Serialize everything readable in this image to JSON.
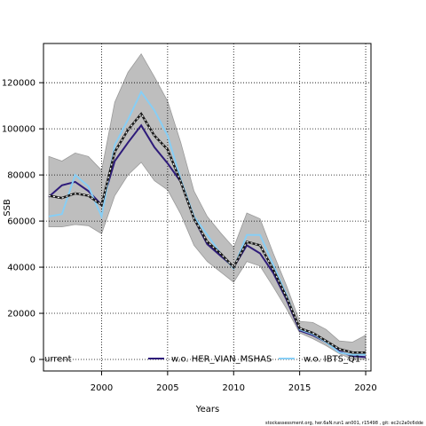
{
  "chart_data": {
    "type": "line",
    "xlabel": "Years",
    "ylabel": "SSB",
    "xlim": [
      1995.6,
      2020.4
    ],
    "ylim": [
      -5000,
      137000
    ],
    "x_ticks": [
      2000,
      2005,
      2010,
      2015,
      2020
    ],
    "y_ticks": [
      0,
      20000,
      40000,
      60000,
      80000,
      100000,
      120000
    ],
    "grid": true,
    "legend_position": "bottom",
    "footer": "stockassessment.org,  her.6aN.run1  an001, r15498 , git: ec2c2a0c6dde",
    "band": {
      "color": "#bebebe",
      "x": [
        1996,
        1997,
        1998,
        1999,
        2000,
        2001,
        2002,
        2003,
        2004,
        2005,
        2006,
        2007,
        2008,
        2009,
        2010,
        2011,
        2012,
        2013,
        2014,
        2015,
        2016,
        2017,
        2018,
        2019,
        2020
      ],
      "lower": [
        57500,
        57500,
        58500,
        58000,
        54500,
        71000,
        80000,
        85500,
        77500,
        73500,
        63000,
        49500,
        42500,
        38000,
        33500,
        42500,
        40500,
        31500,
        22000,
        11500,
        9000,
        6000,
        2500,
        0,
        0
      ],
      "upper": [
        88000,
        86000,
        89500,
        88000,
        82000,
        111500,
        124500,
        132500,
        122500,
        112000,
        94000,
        73000,
        62000,
        55000,
        48500,
        63500,
        61000,
        46000,
        32000,
        16500,
        16000,
        13000,
        8000,
        7500,
        10500
      ]
    },
    "series": [
      {
        "name": "",
        "color": "#1a1a1a",
        "dash": "dashed",
        "x": [
          1996,
          1997,
          1998,
          1999,
          2000,
          2001,
          2002,
          2003,
          2004,
          2005,
          2006,
          2007,
          2008,
          2009,
          2010,
          2011,
          2012,
          2013,
          2014,
          2015,
          2016,
          2017,
          2018,
          2019,
          2020
        ],
        "values": [
          71000,
          70000,
          72000,
          71000,
          67000,
          90000,
          99500,
          106500,
          97000,
          91000,
          77000,
          61000,
          51000,
          46000,
          40000,
          51000,
          49500,
          39000,
          27000,
          13500,
          11500,
          8000,
          4500,
          3000,
          3000
        ]
      },
      {
        "name": "urrent",
        "color": "#000000",
        "dash": "solid",
        "legend_only": true
      },
      {
        "name": "w.o. HER_VIAN_MSHAS",
        "color": "#2e1b7a",
        "dash": "solid",
        "x": [
          1996,
          1997,
          1998,
          1999,
          2000,
          2001,
          2002,
          2003,
          2004,
          2005,
          2006,
          2007,
          2008,
          2009,
          2010,
          2011,
          2012,
          2013,
          2014,
          2015,
          2016,
          2017,
          2018,
          2019,
          2020
        ],
        "values": [
          70500,
          75500,
          77000,
          73000,
          67000,
          86000,
          94000,
          101500,
          92000,
          85000,
          77000,
          61000,
          50000,
          45000,
          40000,
          49500,
          46000,
          37500,
          26000,
          12500,
          10500,
          7500,
          3500,
          1500,
          1000
        ]
      },
      {
        "name": "w.o. IBTS_Q1",
        "color": "#87cef5",
        "dash": "solid",
        "x": [
          1996,
          1997,
          1998,
          1999,
          2000,
          2001,
          2002,
          2003,
          2004,
          2005,
          2006,
          2007,
          2008,
          2009,
          2010,
          2011,
          2012,
          2013,
          2014,
          2015,
          2016,
          2017,
          2018,
          2019,
          2020
        ],
        "values": [
          62000,
          63000,
          80000,
          75000,
          62000,
          93000,
          104000,
          116000,
          108000,
          97000,
          78000,
          62000,
          54000,
          46000,
          39500,
          54000,
          54000,
          41000,
          28000,
          13000,
          11000,
          7500,
          3000,
          2000,
          2000
        ]
      }
    ]
  }
}
